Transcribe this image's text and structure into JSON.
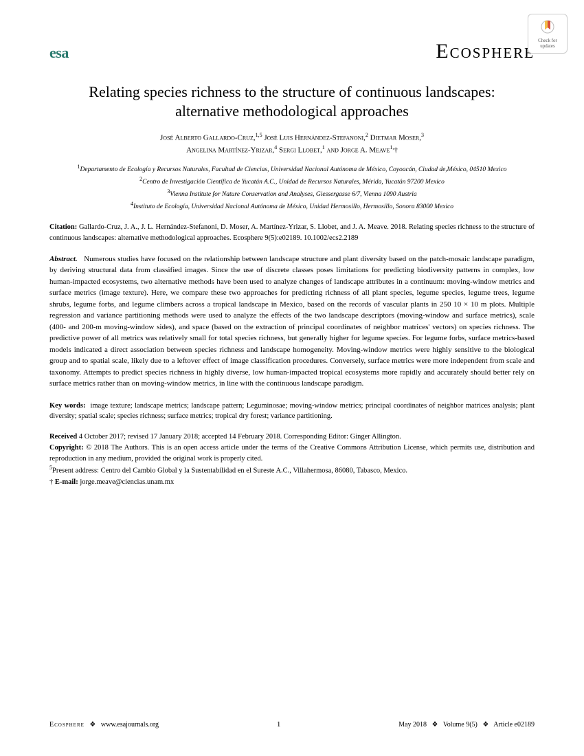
{
  "badge": {
    "line1": "Check for",
    "line2": "updates"
  },
  "header": {
    "society": "esa",
    "journal": "Ecosphere"
  },
  "title": "Relating species richness to the structure of continuous landscapes: alternative methodological approaches",
  "authors_html": "José Alberto Gallardo-Cruz,<sup>1,5</sup> José Luis Hernández-Stefanoni,<sup>2</sup> Dietmar Moser,<sup>3</sup><br>Angelina Martínez-Yrizar,<sup>4</sup> Sergi Llobet,<sup>1</sup> and Jorge A. Meave<sup>1,</sup>†",
  "affiliations_html": "<sup>1</sup>Departamento de Ecología y Recursos Naturales, Facultad de Ciencias, Universidad Nacional Autónoma de México, Coyoacán, Ciudad de,México, 04510 Mexico<br><sup>2</sup>Centro de Investigación Científica de Yucatán A.C., Unidad de Recursos Naturales, Mérida, Yucatán 97200 Mexico<br><sup>3</sup>Vienna Institute for Nature Conservation and Analyses, Giessergasse 6/7, Vienna 1090 Austria<br><sup>4</sup>Instituto de Ecología, Universidad Nacional Autónoma de México, Unidad Hermosillo, Hermosillo, Sonora 83000 Mexico",
  "citation_html": "<b>Citation:</b> Gallardo-Cruz, J. A., J. L. Hernández-Stefanoni, D. Moser, A. Martínez-Yrizar, S. Llobet, and J. A. Meave. 2018. Relating species richness to the structure of continuous landscapes: alternative methodological approaches. Ecosphere 9(5):e02189. 10.1002/ecs2.2189",
  "abstract_html": "<b>Abstract.</b>&nbsp;&nbsp;&nbsp;Numerous studies have focused on the relationship between landscape structure and plant diversity based on the patch-mosaic landscape paradigm, by deriving structural data from classified images. Since the use of discrete classes poses limitations for predicting biodiversity patterns in complex, low human-impacted ecosystems, two alternative methods have been used to analyze changes of landscape attributes in a continuum: moving-window metrics and surface metrics (image texture). Here, we compare these two approaches for predicting richness of all plant species, legume species, legume trees, legume shrubs, legume forbs, and legume climbers across a tropical landscape in Mexico, based on the records of vascular plants in 250 10 × 10 m plots. Multiple regression and variance partitioning methods were used to analyze the effects of the two landscape descriptors (moving-window and surface metrics), scale (400- and 200-m moving-window sides), and space (based on the extraction of principal coordinates of neighbor matrices' vectors) on species richness. The predictive power of all metrics was relatively small for total species richness, but generally higher for legume species. For legume forbs, surface metrics-based models indicated a direct association between species richness and landscape homogeneity. Moving-window metrics were highly sensitive to the biological group and to spatial scale, likely due to a leftover effect of image classification procedures. Conversely, surface metrics were more independent from scale and taxonomy. Attempts to predict species richness in highly diverse, low human-impacted tropical ecosystems more rapidly and accurately should better rely on surface metrics rather than on moving-window metrics, in line with the continuous landscape paradigm.",
  "keywords_html": "<b>Key words:</b>&nbsp;&nbsp;image texture; landscape metrics; landscape pattern; Leguminosae; moving-window metrics; principal coordinates of neighbor matrices analysis; plant diversity; spatial scale; species richness; surface metrics; tropical dry forest; variance partitioning.",
  "metadata_html": "<b>Received</b> 4 October 2017; revised 17 January 2018; accepted 14 February 2018. Corresponding Editor: Ginger Allington.<br><b>Copyright:</b> © 2018 The Authors. This is an open access article under the terms of the Creative Commons Attribution License, which permits use, distribution and reproduction in any medium, provided the original work is properly cited.<br><sup>5</sup>Present address: Centro del Cambio Global y la Sustentabilidad en el Sureste A.C., Villahermosa, 86080, Tabasco, Mexico.<br>† <b>E-mail:</b> jorge.meave@ciencias.unam.mx",
  "footer": {
    "journal": "Ecosphere",
    "url": "www.esajournals.org",
    "page": "1",
    "issue": "May 2018",
    "volume": "Volume 9(5)",
    "article": "Article e02189"
  }
}
